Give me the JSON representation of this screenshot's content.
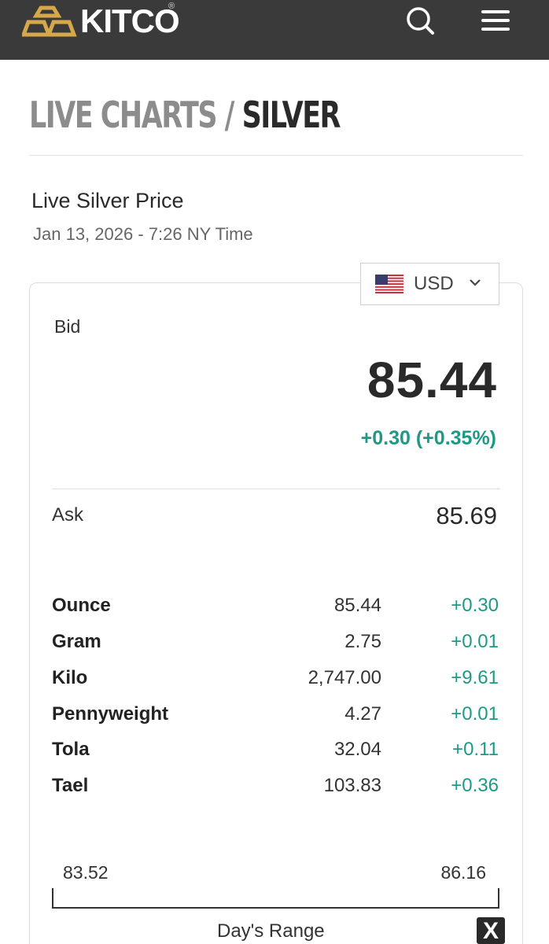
{
  "header": {
    "logo_text": "KITCO",
    "logo_mark": "®",
    "search_icon": "search-icon",
    "menu_icon": "hamburger-menu-icon"
  },
  "page": {
    "title_prefix": "LIVE CHARTS / ",
    "title_current": "SILVER"
  },
  "price_header": {
    "heading": "Live Silver Price",
    "timestamp": "Jan 13, 2026 - 7:26 NY Time"
  },
  "currency_select": {
    "selected": "USD",
    "flag_icon": "us-flag-icon"
  },
  "quote": {
    "bid_label": "Bid",
    "bid_value": "85.44",
    "bid_change": "+0.30 (+0.35%)",
    "ask_label": "Ask",
    "ask_value": "85.69"
  },
  "units": [
    {
      "name": "Ounce",
      "price": "85.44",
      "change": "+0.30"
    },
    {
      "name": "Gram",
      "price": "2.75",
      "change": "+0.01"
    },
    {
      "name": "Kilo",
      "price": "2,747.00",
      "change": "+9.61"
    },
    {
      "name": "Pennyweight",
      "price": "4.27",
      "change": "+0.01"
    },
    {
      "name": "Tola",
      "price": "32.04",
      "change": "+0.11"
    },
    {
      "name": "Tael",
      "price": "103.83",
      "change": "+0.36"
    }
  ],
  "day_range": {
    "low": "83.52",
    "high": "86.16",
    "label": "Day's Range",
    "close_label": "X"
  },
  "colors": {
    "header_bg": "#3a3a3a",
    "logo_gold": "#d6a84a",
    "positive": "#1c9a86"
  }
}
